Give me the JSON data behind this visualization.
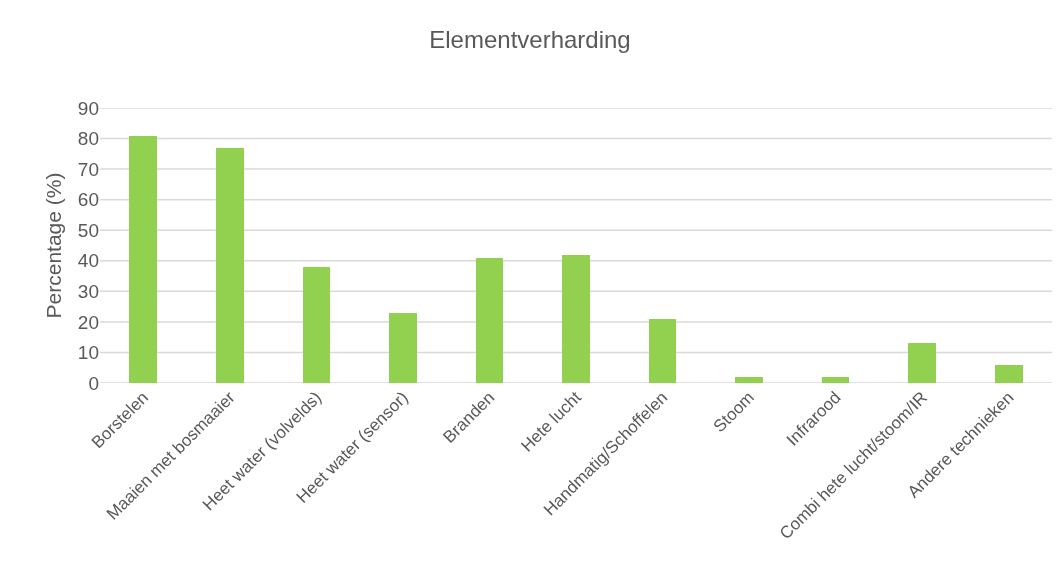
{
  "chart_data": {
    "type": "bar",
    "title": "Elementverharding",
    "ylabel": "Percentage (%)",
    "categories": [
      "Borstelen",
      "Maaien met bosmaaier",
      "Heet water (volvelds)",
      "Heet water (sensor)",
      "Branden",
      "Hete lucht",
      "Handmatig/Schoffelen",
      "Stoom",
      "Infrarood",
      "Combi hete lucht/stoom/IR",
      "Andere technieken"
    ],
    "values": [
      81,
      77,
      38,
      23,
      41,
      42,
      21,
      2,
      2,
      13,
      6
    ],
    "color": "#92d050",
    "ylim": [
      0,
      90
    ],
    "yticks": [
      0,
      10,
      20,
      30,
      40,
      50,
      60,
      70,
      80,
      90
    ],
    "grid": "y"
  }
}
